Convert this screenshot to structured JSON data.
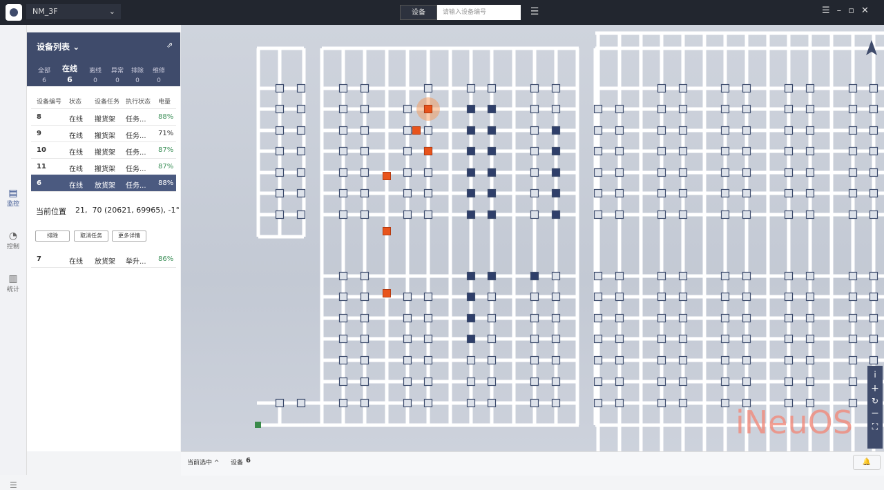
{
  "header": {
    "project": "NM_3F",
    "search_type": "设备",
    "search_placeholder": "请输入设备编号"
  },
  "nav": [
    "监控",
    "控制",
    "统计"
  ],
  "panel": {
    "title": "设备列表",
    "tabs": [
      {
        "label": "全部",
        "count": 6
      },
      {
        "label": "在线",
        "count": 6
      },
      {
        "label": "离线",
        "count": 0
      },
      {
        "label": "异常",
        "count": 0
      },
      {
        "label": "排除",
        "count": 0
      },
      {
        "label": "维修",
        "count": 0
      }
    ],
    "columns": [
      "设备编号",
      "状态",
      "设备任务",
      "执行状态",
      "电量"
    ],
    "rows": [
      [
        "8",
        "在线",
        "搬货架",
        "任务...",
        "88%"
      ],
      [
        "9",
        "在线",
        "搬货架",
        "任务...",
        "71%"
      ],
      [
        "10",
        "在线",
        "搬货架",
        "任务...",
        "87%"
      ],
      [
        "11",
        "在线",
        "搬货架",
        "任务...",
        "87%"
      ],
      [
        "6",
        "在线",
        "放货架",
        "任务...",
        "88%"
      ],
      [
        "7",
        "在线",
        "放货架",
        "举升...",
        "86%"
      ]
    ],
    "detail": {
      "label": "当前位置",
      "value": "21,  70 (20621, 69965), -1°",
      "buttons": [
        "排除",
        "取消任务",
        "更多详情"
      ]
    }
  },
  "footer": {
    "selected_label": "当前选中",
    "device_label": "设备",
    "device_id": "6"
  },
  "watermark": "iNeuOS"
}
